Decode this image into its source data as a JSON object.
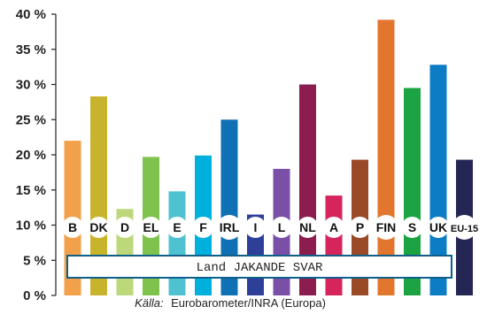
{
  "chart_data": {
    "type": "bar",
    "categories": [
      "B",
      "DK",
      "D",
      "EL",
      "E",
      "F",
      "IRL",
      "I",
      "L",
      "NL",
      "A",
      "P",
      "FIN",
      "S",
      "UK",
      "EU-15"
    ],
    "values": [
      22,
      28.3,
      12.3,
      19.7,
      14.8,
      19.9,
      25,
      11.5,
      18,
      30,
      14.2,
      19.3,
      39.2,
      29.5,
      32.8,
      19.3
    ],
    "colors": [
      "#f2a14a",
      "#c8b42c",
      "#bcd87a",
      "#7fc24e",
      "#4fc2d2",
      "#00b0dc",
      "#0f70b4",
      "#2e3f9a",
      "#7a4fa8",
      "#8b1e4e",
      "#d6245c",
      "#9a4a26",
      "#e2762e",
      "#1ca442",
      "#0c7cc4",
      "#262654"
    ],
    "ylim": [
      0,
      40
    ],
    "yticks": [
      "0 %",
      "5 %",
      "10 %",
      "15 %",
      "20 %",
      "25 %",
      "30 %",
      "35 %",
      "40 %"
    ],
    "legend": "Land JAKANDE SVAR",
    "source_label": "Källa:",
    "source_text": "Eurobarometer/INRA (Europa)"
  }
}
